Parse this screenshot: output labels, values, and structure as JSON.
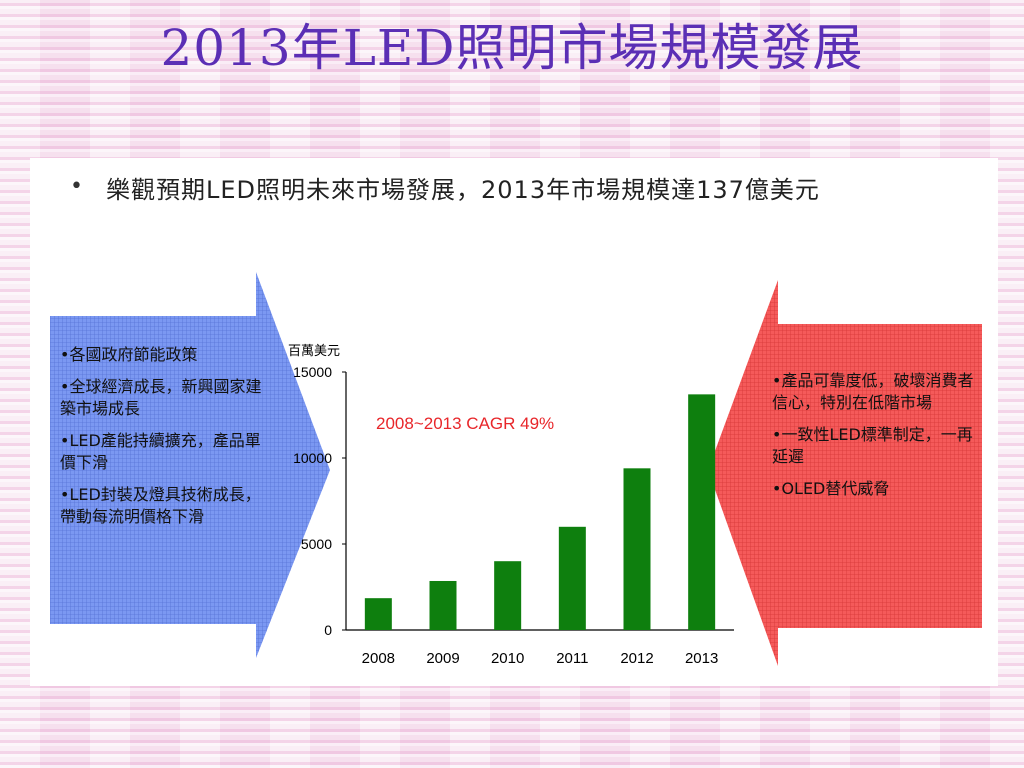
{
  "slide": {
    "title": "2013年LED照明市場規模發展"
  },
  "bullet": {
    "marker": "•",
    "text": "樂觀預期LED照明未來市場發展，2013年市場規模達137億美元"
  },
  "left_box": {
    "items": [
      "•各國政府節能政策",
      "•全球經濟成長，新興國家建築市場成長",
      "•LED產能持續擴充，產品單價下滑",
      "•LED封裝及燈具技術成長，帶動每流明價格下滑"
    ],
    "color": "#6f8ff0"
  },
  "right_box": {
    "items": [
      "•產品可靠度低，破壞消費者信心，特別在低階市場",
      "•一致性LED標準制定，一再延遲",
      "•OLED替代威脅"
    ],
    "color": "#f05050"
  },
  "chart_data": {
    "type": "bar",
    "categories": [
      "2008",
      "2009",
      "2010",
      "2011",
      "2012",
      "2013"
    ],
    "values": [
      1850,
      2850,
      4000,
      6000,
      9400,
      13700
    ],
    "ylabel": "百萬美元",
    "ylim": [
      0,
      15000
    ],
    "yticks": [
      0,
      5000,
      10000,
      15000
    ],
    "annotation": "2008~2013 CAGR 49%",
    "bar_color": "#0e7f0e",
    "annotation_color": "#e8262a",
    "grid": false
  }
}
